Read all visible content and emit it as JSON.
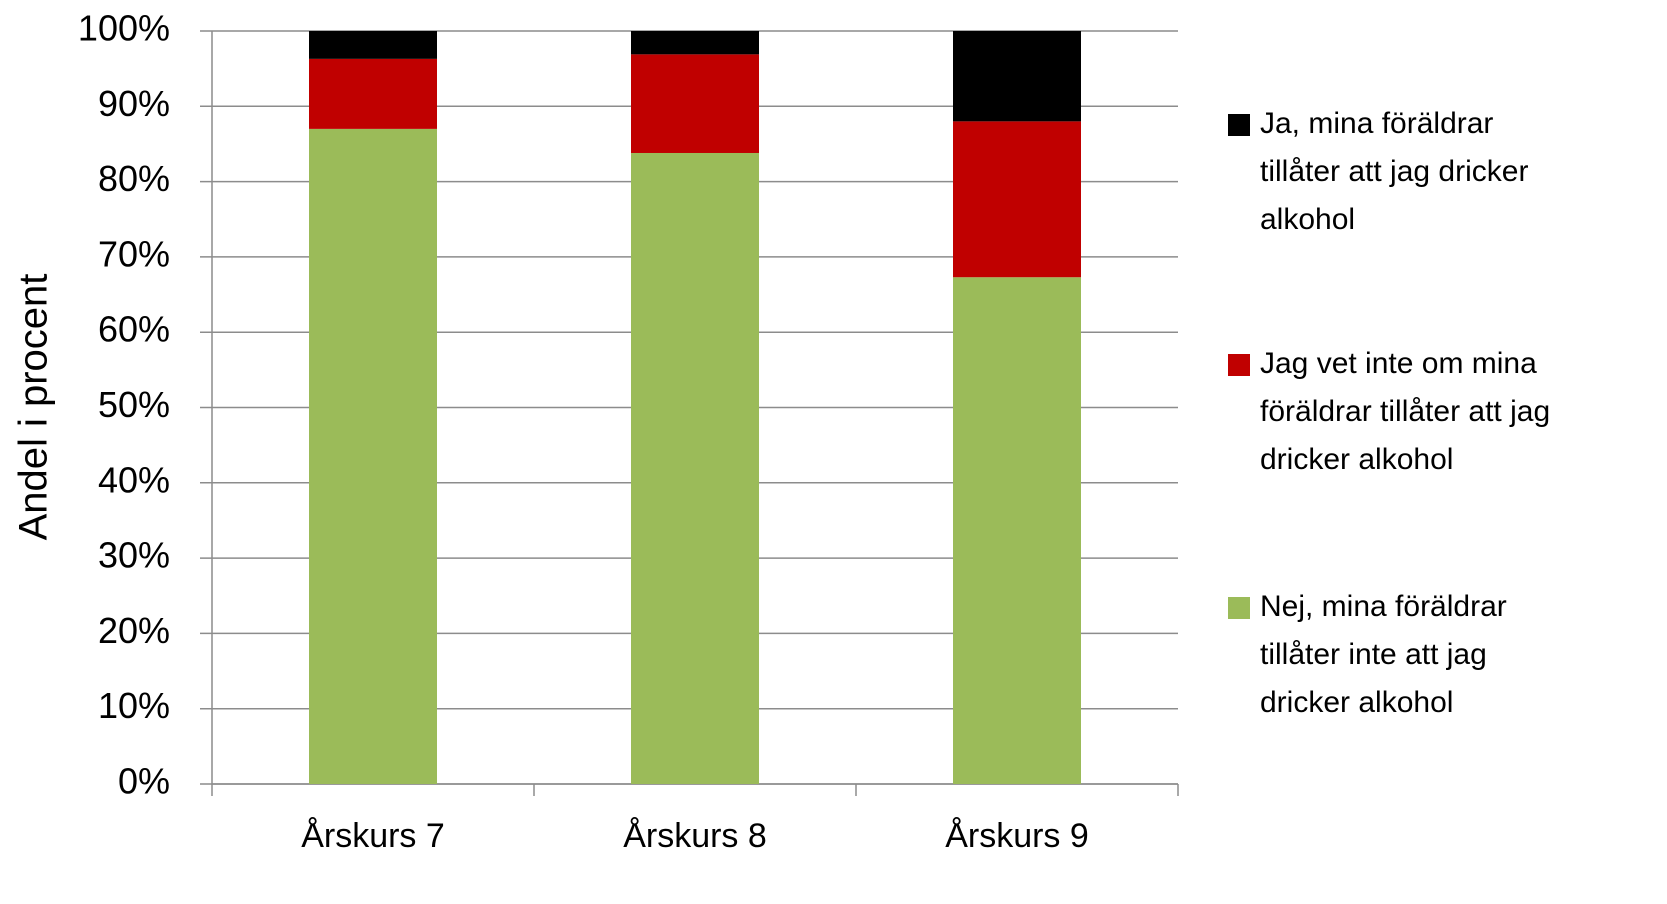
{
  "chart_data": {
    "type": "stacked_bar",
    "y_label": "Andel i procent",
    "categories": [
      "Årskurs 7",
      "Årskurs 8",
      "Årskurs 9"
    ],
    "series": [
      {
        "name": "Nej, mina föräldrar tillåter inte att jag dricker alkohol",
        "color": "#9bbb59",
        "values": [
          87.0,
          83.8,
          67.3
        ]
      },
      {
        "name": "Jag vet inte om mina föräldrar tillåter att jag dricker alkohol",
        "color": "#c00000",
        "values": [
          9.3,
          13.1,
          20.7
        ]
      },
      {
        "name": "Ja, mina föräldrar tillåter att jag dricker alkohol",
        "color": "#000000",
        "values": [
          3.7,
          3.1,
          12.0
        ]
      }
    ],
    "ylim": [
      0,
      100
    ],
    "yticks": [
      {
        "value": 0,
        "label": "0%"
      },
      {
        "value": 10,
        "label": "10%"
      },
      {
        "value": 20,
        "label": "20%"
      },
      {
        "value": 30,
        "label": "30%"
      },
      {
        "value": 40,
        "label": "40%"
      },
      {
        "value": 50,
        "label": "50%"
      },
      {
        "value": 60,
        "label": "60%"
      },
      {
        "value": 70,
        "label": "70%"
      },
      {
        "value": 80,
        "label": "80%"
      },
      {
        "value": 90,
        "label": "90%"
      },
      {
        "value": 100,
        "label": "100%"
      }
    ],
    "grid": true,
    "legend": "right"
  }
}
